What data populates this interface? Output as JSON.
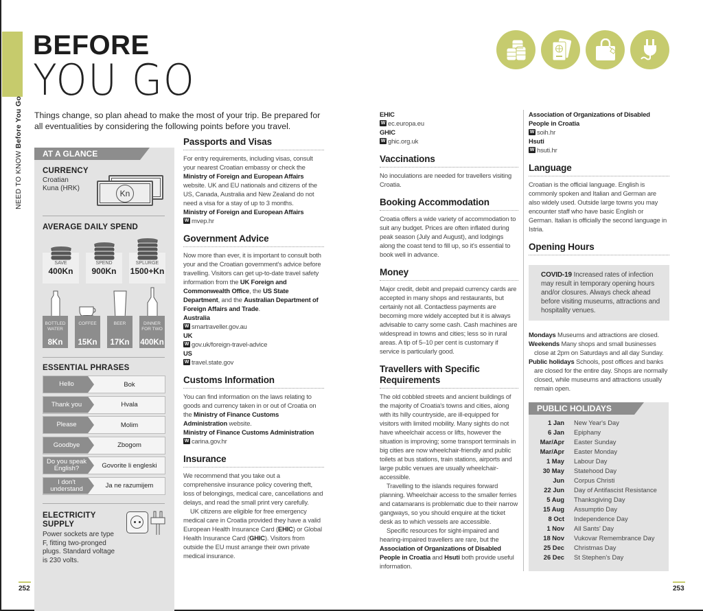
{
  "header": {
    "vertical_section": "NEED TO KNOW",
    "vertical_title": "Before You Go",
    "title_line1": "BEFORE",
    "title_line2": "YOU GO",
    "intro": "Things change, so plan ahead to make the most of your trip. Be prepared for all eventualities by considering the following points before you travel.",
    "icons": [
      "coins-icon",
      "passport-icon",
      "shopping-bag-icon",
      "plug-icon"
    ],
    "accent": "#c6cb6c"
  },
  "sidebar": {
    "title": "AT A GLANCE",
    "currency": {
      "heading": "CURRENCY",
      "text1": "Croatian",
      "text2": "Kuna (HRK)",
      "symbol": "Kn"
    },
    "spend": {
      "heading": "AVERAGE DAILY SPEND",
      "tiers": [
        {
          "label": "SAVE",
          "value": "400Kn"
        },
        {
          "label": "SPEND",
          "value": "900Kn"
        },
        {
          "label": "SPLURGE",
          "value": "1500+Kn"
        }
      ],
      "costs": [
        {
          "label1": "BOTTLED",
          "label2": "WATER",
          "value": "8Kn"
        },
        {
          "label1": "COFFEE",
          "label2": "",
          "value": "15Kn"
        },
        {
          "label1": "BEER",
          "label2": "",
          "value": "17Kn"
        },
        {
          "label1": "DINNER",
          "label2": "FOR TWO",
          "value": "400Kn"
        }
      ]
    },
    "phrases": {
      "heading": "ESSENTIAL PHRASES",
      "items": [
        {
          "en": "Hello",
          "hr": "Bok"
        },
        {
          "en": "Thank you",
          "hr": "Hvala"
        },
        {
          "en": "Please",
          "hr": "Molim"
        },
        {
          "en": "Goodbye",
          "hr": "Zbogom"
        },
        {
          "en": "Do you speak English?",
          "hr": "Govorite li engleski"
        },
        {
          "en": "I don't understand",
          "hr": "Ja ne razumijem"
        }
      ]
    },
    "electricity": {
      "heading1": "ELECTRICITY",
      "heading2": "SUPPLY",
      "text": "Power sockets are type F, fitting two-pronged plugs. Standard voltage is 230 volts."
    }
  },
  "columns": [
    [
      {
        "heading": "Passports and Visas",
        "blocks": [
          {
            "type": "p",
            "runs": [
              {
                "t": "For entry requirements, including visas, consult your nearest Croatian embassy or check the "
              },
              {
                "t": "Ministry of Foreign and European Affairs",
                "b": true
              },
              {
                "t": " website. UK and EU nationals and citizens of the US, Canada, Australia and New Zealand do not need a visa for a stay of up to 3 months."
              }
            ]
          },
          {
            "type": "label",
            "text": "Ministry of Foreign and European Affairs"
          },
          {
            "type": "link",
            "text": "mvep.hr"
          }
        ]
      },
      {
        "heading": "Government Advice",
        "blocks": [
          {
            "type": "p",
            "runs": [
              {
                "t": "Now more than ever, it is important to consult both your and the Croatian government's advice before travelling. Visitors can get up-to-date travel safety information from the "
              },
              {
                "t": "UK Foreign and Commonwealth Office",
                "b": true
              },
              {
                "t": ", the "
              },
              {
                "t": "US State Department",
                "b": true
              },
              {
                "t": ", and the "
              },
              {
                "t": "Australian Department of Foreign Affairs and Trade",
                "b": true
              },
              {
                "t": "."
              }
            ]
          },
          {
            "type": "label",
            "text": "Australia"
          },
          {
            "type": "link",
            "text": "smartraveller.gov.au"
          },
          {
            "type": "label",
            "text": "UK"
          },
          {
            "type": "link",
            "text": "gov.uk/foreign-travel-advice"
          },
          {
            "type": "label",
            "text": "US"
          },
          {
            "type": "link",
            "text": "travel.state.gov"
          }
        ]
      },
      {
        "heading": "Customs Information",
        "blocks": [
          {
            "type": "p",
            "runs": [
              {
                "t": "You can find information on the laws relating to goods and currency taken in or out of Croatia on the "
              },
              {
                "t": "Ministry of Finance Customs Administration",
                "b": true
              },
              {
                "t": " website."
              }
            ]
          },
          {
            "type": "label",
            "text": "Ministry of Finance Customs Administration"
          },
          {
            "type": "link",
            "text": "carina.gov.hr"
          }
        ]
      },
      {
        "heading": "Insurance",
        "blocks": [
          {
            "type": "p",
            "runs": [
              {
                "t": "We recommend that you take out a comprehensive insurance policy covering theft, loss of belongings, medical care, cancellations and delays, and read the small print very carefully."
              }
            ]
          },
          {
            "type": "ip",
            "runs": [
              {
                "t": "UK citizens are eligible for free emergency medical care in Croatia provided they have a valid European Health Insurance Card ("
              },
              {
                "t": "EHIC",
                "b": true
              },
              {
                "t": ") or Global Health Insurance Card ("
              },
              {
                "t": "GHIC",
                "b": true
              },
              {
                "t": "). Visitors from outside the EU must arrange their own private medical insurance."
              }
            ]
          }
        ]
      }
    ],
    [
      {
        "heading": "",
        "blocks": [
          {
            "type": "label",
            "text": "EHIC"
          },
          {
            "type": "link",
            "text": "ec.europa.eu"
          },
          {
            "type": "label",
            "text": "GHIC"
          },
          {
            "type": "link",
            "text": "ghic.org.uk"
          }
        ]
      },
      {
        "heading": "Vaccinations",
        "blocks": [
          {
            "type": "p",
            "runs": [
              {
                "t": "No inoculations are needed for travellers visiting Croatia."
              }
            ]
          }
        ]
      },
      {
        "heading": "Booking Accommodation",
        "blocks": [
          {
            "type": "p",
            "runs": [
              {
                "t": "Croatia offers a wide variety of accommodation to suit any budget. Prices are often inflated during peak season (July and August), and lodgings along the coast tend to fill up, so it's essential to book well in advance."
              }
            ]
          }
        ]
      },
      {
        "heading": "Money",
        "blocks": [
          {
            "type": "p",
            "runs": [
              {
                "t": "Major credit, debit and prepaid currency cards are accepted in many shops and restaurants, but certainly not all. Contactless payments are becoming more widely accepted but it is always advisable to carry some cash. Cash machines are widespread in towns and cities; less so in rural areas. A tip of 5–10 per cent is customary if service is particularly good."
              }
            ]
          }
        ]
      },
      {
        "heading": "Travellers with Specific Requirements",
        "blocks": [
          {
            "type": "p",
            "runs": [
              {
                "t": "The old cobbled streets and ancient buildings of the majority of Croatia's towns and cities, along with its hilly countryside, are ill-equipped for visitors with limited mobility. Many sights do not have wheelchair access or lifts, however the situation is improving; some transport terminals in big cities are now wheelchair-friendly and public toilets at bus stations, train stations, airports and large public venues are usually wheelchair-accessible."
              }
            ]
          },
          {
            "type": "ip",
            "runs": [
              {
                "t": "Travelling to the islands requires forward planning. Wheelchair access to the smaller ferries and catamarans is problematic due to their narrow gangways, so you should enquire at the ticket desk as to which vessels are accessible."
              }
            ]
          },
          {
            "type": "ip",
            "runs": [
              {
                "t": "Specific resources for sight-impaired and hearing-impaired travellers are rare, but the "
              },
              {
                "t": "Association of Organizations of Disabled People in Croatia",
                "b": true
              },
              {
                "t": " and "
              },
              {
                "t": "Hsuti",
                "b": true
              },
              {
                "t": " both provide useful information."
              }
            ]
          }
        ]
      }
    ],
    [
      {
        "heading": "",
        "blocks": [
          {
            "type": "label",
            "text": "Association of Organizations of Disabled People in Croatia"
          },
          {
            "type": "link",
            "text": "soih.hr"
          },
          {
            "type": "label",
            "text": "Hsuti"
          },
          {
            "type": "link",
            "text": "hsuti.hr"
          }
        ]
      },
      {
        "heading": "Language",
        "blocks": [
          {
            "type": "p",
            "runs": [
              {
                "t": "Croatian is the official language. English is commonly spoken and Italian and German are also widely used. Outside large towns you may encounter staff who have basic English or German. Italian is officially the second language in Istria."
              }
            ]
          }
        ]
      },
      {
        "heading": "Opening Hours",
        "blocks": [
          {
            "type": "box",
            "runs": [
              {
                "t": "COVID-19",
                "b": true
              },
              {
                "t": "  Increased rates of infection may result in temporary opening hours and/or closures. Always check ahead before visiting museums, attractions and hospitality venues."
              }
            ]
          },
          {
            "type": "hp",
            "runs": [
              {
                "t": "Mondays",
                "b": true
              },
              {
                "t": "  Museums and attractions are closed."
              }
            ]
          },
          {
            "type": "hp",
            "runs": [
              {
                "t": "Weekends",
                "b": true
              },
              {
                "t": "  Many shops and small businesses close at 2pm on Saturdays and all day Sunday."
              }
            ]
          },
          {
            "type": "hp",
            "runs": [
              {
                "t": "Public holidays",
                "b": true
              },
              {
                "t": "  Schools, post offices and banks are closed for the entire day. Shops are normally closed, while museums and attractions usually remain open."
              }
            ]
          }
        ]
      }
    ]
  ],
  "holidays": {
    "title": "PUBLIC HOLIDAYS",
    "items": [
      {
        "date": "1 Jan",
        "name": "New Year's Day"
      },
      {
        "date": "6 Jan",
        "name": "Epiphany"
      },
      {
        "date": "Mar/Apr",
        "name": "Easter Sunday"
      },
      {
        "date": "Mar/Apr",
        "name": "Easter Monday"
      },
      {
        "date": "1 May",
        "name": "Labour Day"
      },
      {
        "date": "30 May",
        "name": "Statehood Day"
      },
      {
        "date": "Jun",
        "name": "Corpus Christi"
      },
      {
        "date": "22 Jun",
        "name": "Day of Antifascist Resistance"
      },
      {
        "date": "5 Aug",
        "name": "Thanksgiving Day"
      },
      {
        "date": "15 Aug",
        "name": "Assumptio Day"
      },
      {
        "date": "8 Oct",
        "name": "Independence Day"
      },
      {
        "date": "1 Nov",
        "name": "All Sants' Day"
      },
      {
        "date": "18 Nov",
        "name": "Vukovar Remembrance Day"
      },
      {
        "date": "25 Dec",
        "name": "Christmas Day"
      },
      {
        "date": "26 Dec",
        "name": "St Stephen's Day"
      }
    ]
  },
  "pages": {
    "left": "252",
    "right": "253"
  }
}
